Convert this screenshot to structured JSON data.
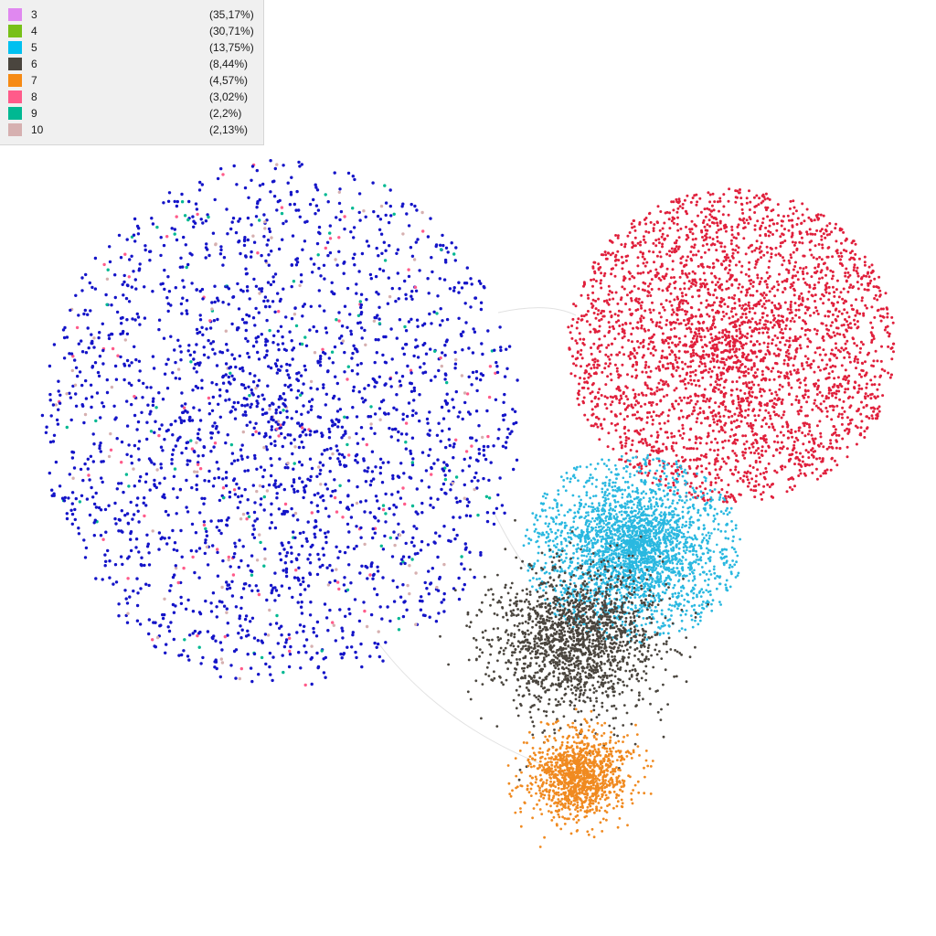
{
  "legend": {
    "items": [
      {
        "label": "3",
        "percent": "(35,17%)",
        "color": "#e088f0"
      },
      {
        "label": "4",
        "percent": "(30,71%)",
        "color": "#78c018"
      },
      {
        "label": "5",
        "percent": "(13,75%)",
        "color": "#00c0f0"
      },
      {
        "label": "6",
        "percent": "(8,44%)",
        "color": "#4a453e"
      },
      {
        "label": "7",
        "percent": "(4,57%)",
        "color": "#f68a14"
      },
      {
        "label": "8",
        "percent": "(3,02%)",
        "color": "#ff5b8a"
      },
      {
        "label": "9",
        "percent": "(2,2%)",
        "color": "#00b892"
      },
      {
        "label": "10",
        "percent": "(2,13%)",
        "color": "#d6b0b0"
      }
    ]
  },
  "graph": {
    "clusters": [
      {
        "name": "blue-cluster",
        "color": "#1414c8"
      },
      {
        "name": "red-cluster",
        "color": "#e0203c"
      },
      {
        "name": "cyan-cluster",
        "color": "#2ab8e0"
      },
      {
        "name": "dark-cluster",
        "color": "#4a453e"
      },
      {
        "name": "orange-cluster",
        "color": "#f08a20"
      }
    ],
    "minor_colors": [
      "#ff5b8a",
      "#00b892",
      "#d6b0b0"
    ]
  }
}
